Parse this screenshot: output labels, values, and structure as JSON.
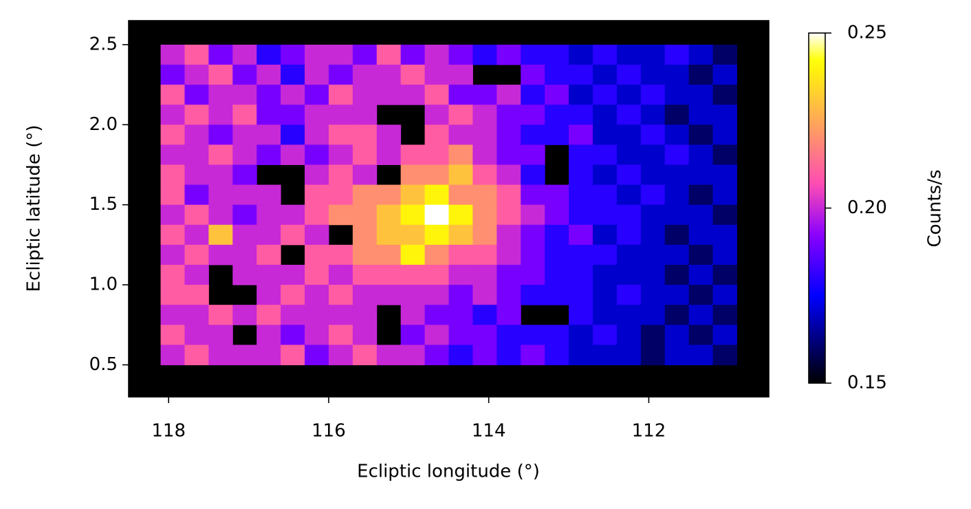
{
  "chart_data": {
    "type": "heatmap",
    "xlabel": "Ecliptic longitude (°)",
    "ylabel": "Ecliptic latitude (°)",
    "colorbar_label": "Counts/s",
    "colormap": "gnuplot2",
    "background": "#000000",
    "xlim": [
      118.5,
      110.5
    ],
    "ylim": [
      0.3,
      2.65
    ],
    "xticks": [
      118,
      116,
      114,
      112
    ],
    "yticks": [
      0.5,
      {
        "value": 1,
        "label": "1.0"
      },
      1.5,
      {
        "value": 2,
        "label": "2.0"
      },
      2.5
    ],
    "clim": [
      0.15,
      0.25
    ],
    "colorbar_ticks": [
      0.15,
      {
        "value": 0.2,
        "label": "0.20"
      },
      0.25
    ],
    "x": [
      117.95,
      117.65,
      117.35,
      117.05,
      116.75,
      116.45,
      116.15,
      115.85,
      115.55,
      115.25,
      114.95,
      114.65,
      114.35,
      114.05,
      113.75,
      113.45,
      113.15,
      112.85,
      112.55,
      112.25,
      111.95,
      111.65,
      111.35,
      111.05
    ],
    "y": [
      2.4375,
      2.3125,
      2.1875,
      2.0625,
      1.9375,
      1.8125,
      1.6875,
      1.5625,
      1.4375,
      1.3125,
      1.1875,
      1.0625,
      0.9375,
      0.8125,
      0.6875,
      0.5625
    ],
    "values": [
      [
        0.2,
        0.21,
        0.19,
        0.2,
        0.18,
        0.19,
        0.2,
        0.2,
        0.19,
        0.21,
        0.19,
        0.2,
        0.19,
        0.18,
        0.19,
        0.18,
        0.18,
        0.17,
        0.18,
        0.17,
        0.17,
        0.18,
        0.17,
        0.16
      ],
      [
        0.19,
        0.2,
        0.21,
        0.19,
        0.2,
        0.18,
        0.2,
        0.19,
        0.2,
        0.2,
        0.21,
        0.2,
        0.2,
        null,
        null,
        0.19,
        0.18,
        0.18,
        0.17,
        0.18,
        0.17,
        0.17,
        0.16,
        0.17
      ],
      [
        0.21,
        0.19,
        0.2,
        0.2,
        0.19,
        0.2,
        0.19,
        0.21,
        0.2,
        0.2,
        0.2,
        0.21,
        0.19,
        0.19,
        0.2,
        0.18,
        0.19,
        0.17,
        0.18,
        0.17,
        0.18,
        0.17,
        0.17,
        0.16
      ],
      [
        0.2,
        0.21,
        0.2,
        0.21,
        0.19,
        0.19,
        0.2,
        0.2,
        0.2,
        null,
        null,
        0.2,
        0.21,
        0.2,
        0.19,
        0.19,
        0.18,
        0.18,
        0.17,
        0.18,
        0.17,
        0.16,
        0.17,
        0.17
      ],
      [
        0.21,
        0.2,
        0.19,
        0.2,
        0.2,
        0.18,
        0.2,
        0.21,
        0.21,
        0.2,
        null,
        0.21,
        0.2,
        0.2,
        0.19,
        0.18,
        0.18,
        0.19,
        0.17,
        0.17,
        0.18,
        0.17,
        0.16,
        0.17
      ],
      [
        0.2,
        0.2,
        0.21,
        0.2,
        0.19,
        0.2,
        0.19,
        0.2,
        0.21,
        0.2,
        0.21,
        0.21,
        0.22,
        0.2,
        0.19,
        0.19,
        null,
        0.18,
        0.18,
        0.17,
        0.17,
        0.18,
        0.17,
        0.16
      ],
      [
        0.21,
        0.2,
        0.2,
        0.19,
        null,
        null,
        0.2,
        0.21,
        0.2,
        null,
        0.22,
        0.22,
        0.23,
        0.21,
        0.2,
        0.18,
        null,
        0.18,
        0.17,
        0.18,
        0.17,
        0.17,
        0.17,
        0.17
      ],
      [
        0.21,
        0.19,
        0.2,
        0.2,
        0.2,
        null,
        0.21,
        0.21,
        0.22,
        0.22,
        0.23,
        0.24,
        0.22,
        0.22,
        0.21,
        0.19,
        0.19,
        0.18,
        0.18,
        0.17,
        0.18,
        0.17,
        0.16,
        0.17
      ],
      [
        0.2,
        0.21,
        0.2,
        0.19,
        0.2,
        0.2,
        0.21,
        0.22,
        0.22,
        0.23,
        0.24,
        0.25,
        0.24,
        0.22,
        0.21,
        0.2,
        0.19,
        0.18,
        0.18,
        0.18,
        0.17,
        0.17,
        0.17,
        0.16
      ],
      [
        0.21,
        0.2,
        0.23,
        0.2,
        0.2,
        0.21,
        0.2,
        null,
        0.22,
        0.23,
        0.23,
        0.24,
        0.23,
        0.22,
        0.2,
        0.19,
        0.18,
        0.19,
        0.17,
        0.18,
        0.17,
        0.16,
        0.17,
        0.17
      ],
      [
        0.2,
        0.21,
        0.2,
        0.2,
        0.21,
        null,
        0.21,
        0.21,
        0.22,
        0.22,
        0.24,
        0.22,
        0.21,
        0.21,
        0.2,
        0.19,
        0.18,
        0.18,
        0.18,
        0.17,
        0.17,
        0.17,
        0.16,
        0.17
      ],
      [
        0.21,
        0.2,
        null,
        0.2,
        0.2,
        0.2,
        0.21,
        0.2,
        0.21,
        0.21,
        0.21,
        0.21,
        0.2,
        0.2,
        0.19,
        0.19,
        0.18,
        0.18,
        0.17,
        0.17,
        0.17,
        0.16,
        0.17,
        0.16
      ],
      [
        0.21,
        0.21,
        null,
        null,
        0.2,
        0.21,
        0.2,
        0.21,
        0.2,
        0.2,
        0.2,
        0.2,
        0.19,
        0.2,
        0.19,
        0.18,
        0.18,
        0.18,
        0.17,
        0.18,
        0.17,
        0.17,
        0.16,
        0.17
      ],
      [
        0.2,
        0.2,
        0.21,
        0.2,
        0.21,
        0.2,
        0.2,
        0.2,
        0.2,
        null,
        0.2,
        0.19,
        0.19,
        0.18,
        0.19,
        null,
        null,
        0.18,
        0.17,
        0.17,
        0.17,
        0.16,
        0.17,
        0.16
      ],
      [
        0.21,
        0.2,
        0.2,
        null,
        0.2,
        0.19,
        0.2,
        0.21,
        0.2,
        null,
        0.19,
        0.2,
        0.19,
        0.19,
        0.18,
        0.18,
        0.18,
        0.17,
        0.18,
        0.17,
        0.16,
        0.17,
        0.16,
        0.17
      ],
      [
        0.2,
        0.21,
        0.2,
        0.2,
        0.2,
        0.21,
        0.19,
        0.2,
        0.21,
        0.2,
        0.2,
        0.19,
        0.18,
        0.19,
        0.18,
        0.19,
        0.18,
        0.17,
        0.17,
        0.17,
        0.16,
        0.17,
        0.17,
        0.16
      ]
    ]
  }
}
